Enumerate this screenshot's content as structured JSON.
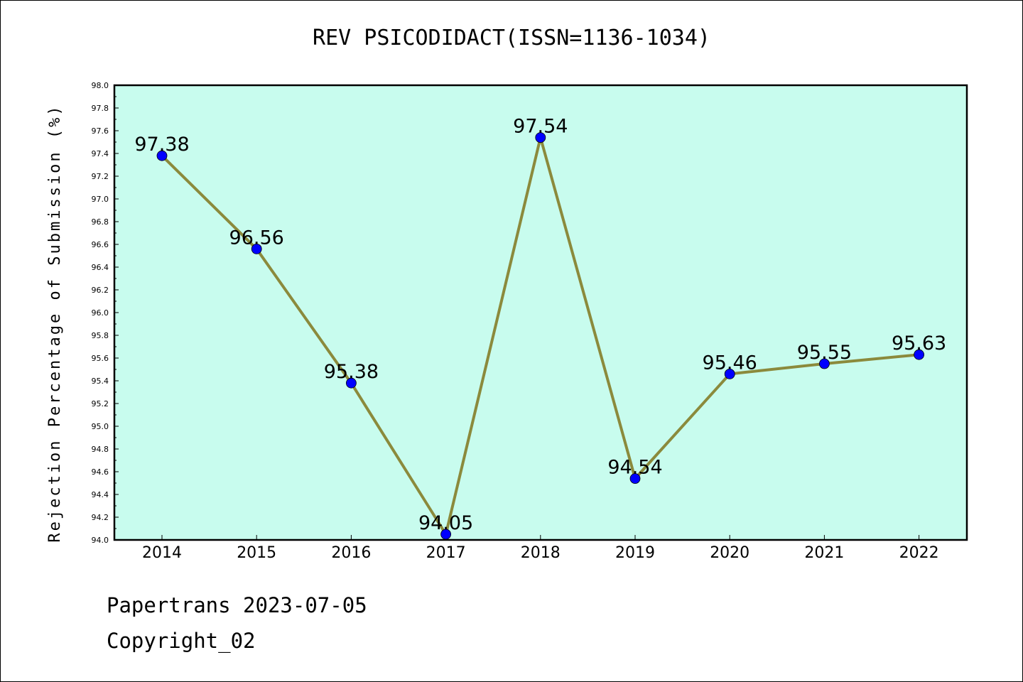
{
  "chart_data": {
    "type": "line",
    "title": "REV PSICODIDACT(ISSN=1136-1034)",
    "xlabel": "",
    "ylabel": "Rejection Percentage of Submission (%)",
    "categories": [
      "2014",
      "2015",
      "2016",
      "2017",
      "2018",
      "2019",
      "2020",
      "2021",
      "2022"
    ],
    "series": [
      {
        "values": [
          97.38,
          96.56,
          95.38,
          94.05,
          97.54,
          94.54,
          95.46,
          95.55,
          95.63
        ],
        "data_labels": [
          "97.38",
          "96.56",
          "95.38",
          "94.05",
          "97.54",
          "94.54",
          "95.46",
          "95.55",
          "95.63"
        ],
        "line_color": "#8b8a3c",
        "marker_color": "#0000ff"
      }
    ],
    "ylim": [
      94.0,
      98.0
    ],
    "yticks": [
      "94.0",
      "94.2",
      "94.4",
      "94.6",
      "94.8",
      "95.0",
      "95.2",
      "95.4",
      "95.6",
      "95.8",
      "96.0",
      "96.2",
      "96.4",
      "96.6",
      "96.8",
      "97.0",
      "97.2",
      "97.4",
      "97.6",
      "97.8",
      "98.0"
    ],
    "grid": false,
    "legend": "none",
    "plot_background": "#c8fcee"
  },
  "footer": {
    "line1": "Papertrans 2023-07-05",
    "line2": "Copyright_02"
  }
}
